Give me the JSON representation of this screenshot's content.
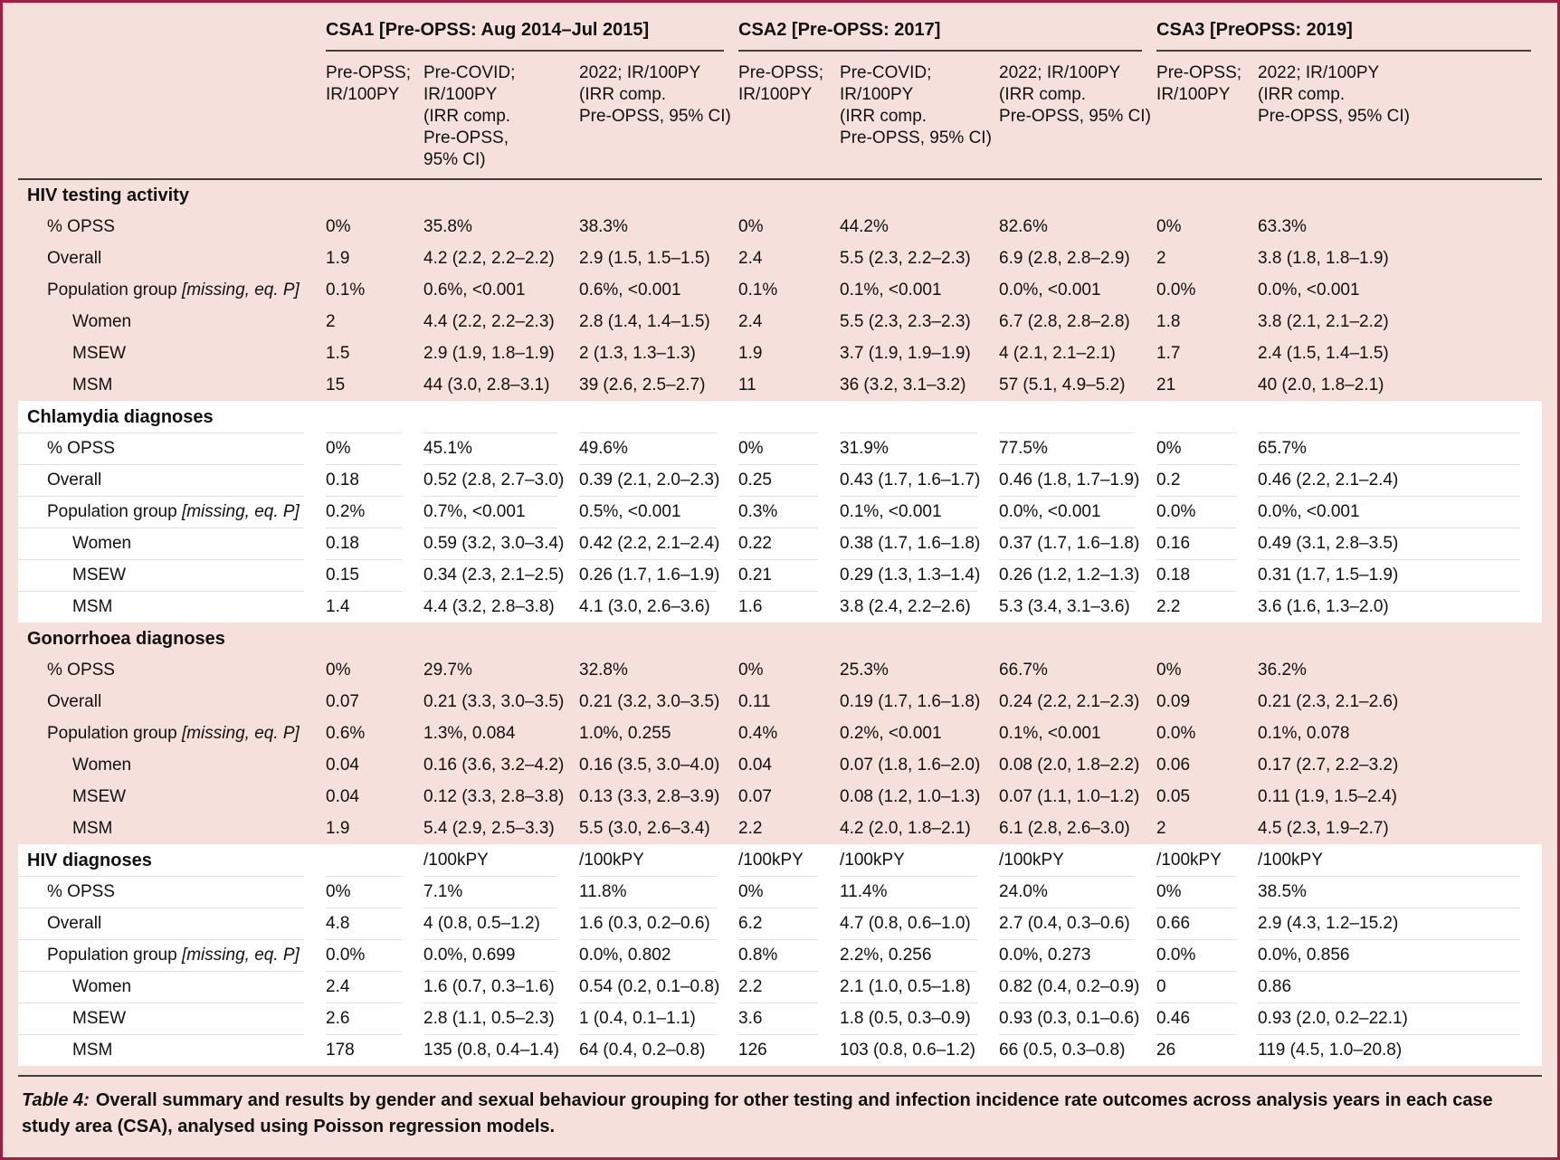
{
  "page": {
    "background_color": "#f6e0dc",
    "border_color": "#9c2044",
    "white_band_color": "#ffffff",
    "rule_color": "#3f3f3f"
  },
  "table": {
    "groups": [
      {
        "label": "CSA1 [Pre-OPSS: Aug 2014–Jul 2015]",
        "span": 3
      },
      {
        "label": "CSA2 [Pre-OPSS: 2017]",
        "span": 3
      },
      {
        "label": "CSA3 [PreOPSS: 2019]",
        "span": 2
      }
    ],
    "columns": [
      [
        "Pre-OPSS;",
        "IR/100PY"
      ],
      [
        "Pre-COVID;",
        "IR/100PY",
        "(IRR comp.",
        "Pre-OPSS,",
        "95% CI)"
      ],
      [
        "2022; IR/100PY",
        "(IRR comp.",
        "Pre-OPSS, 95% CI)"
      ],
      [
        "Pre-OPSS;",
        "IR/100PY"
      ],
      [
        "Pre-COVID;",
        "IR/100PY",
        "(IRR comp.",
        "Pre-OPSS, 95% CI)"
      ],
      [
        "2022; IR/100PY",
        "(IRR comp.",
        "Pre-OPSS, 95% CI)"
      ],
      [
        "Pre-OPSS;",
        "IR/100PY"
      ],
      [
        "2022; IR/100PY",
        "(IRR comp.",
        "Pre-OPSS, 95% CI)"
      ]
    ],
    "sections": [
      {
        "title": "HIV testing activity",
        "background": "pink",
        "unit_cells": [
          "",
          "",
          "",
          "",
          "",
          "",
          "",
          ""
        ],
        "rows": [
          {
            "label": "% OPSS",
            "indent": 1,
            "cells": [
              "0%",
              "35.8%",
              "38.3%",
              "0%",
              "44.2%",
              "82.6%",
              "0%",
              "63.3%"
            ]
          },
          {
            "label": "Overall",
            "indent": 1,
            "cells": [
              "1.9",
              "4.2 (2.2, 2.2–2.2)",
              "2.9 (1.5, 1.5–1.5)",
              "2.4",
              "5.5 (2.3, 2.2–2.3)",
              "6.9 (2.8, 2.8–2.9)",
              "2",
              "3.8 (1.8, 1.8–1.9)"
            ]
          },
          {
            "label": "Population group",
            "label_italic": "[missing, eq. P]",
            "indent": 1,
            "cells": [
              "0.1%",
              "0.6%, <0.001",
              "0.6%, <0.001",
              "0.1%",
              "0.1%, <0.001",
              "0.0%, <0.001",
              "0.0%",
              "0.0%, <0.001"
            ]
          },
          {
            "label": "Women",
            "indent": 2,
            "cells": [
              "2",
              "4.4 (2.2, 2.2–2.3)",
              "2.8 (1.4, 1.4–1.5)",
              "2.4",
              "5.5 (2.3, 2.3–2.3)",
              "6.7 (2.8, 2.8–2.8)",
              "1.8",
              "3.8 (2.1, 2.1–2.2)"
            ]
          },
          {
            "label": "MSEW",
            "indent": 2,
            "cells": [
              "1.5",
              "2.9 (1.9, 1.8–1.9)",
              "2 (1.3, 1.3–1.3)",
              "1.9",
              "3.7 (1.9, 1.9–1.9)",
              "4 (2.1, 2.1–2.1)",
              "1.7",
              "2.4 (1.5, 1.4–1.5)"
            ]
          },
          {
            "label": "MSM",
            "indent": 2,
            "cells": [
              "15",
              "44 (3.0, 2.8–3.1)",
              "39 (2.6, 2.5–2.7)",
              "11",
              "36 (3.2, 3.1–3.2)",
              "57 (5.1, 4.9–5.2)",
              "21",
              "40 (2.0, 1.8–2.1)"
            ]
          }
        ]
      },
      {
        "title": "Chlamydia diagnoses",
        "background": "white",
        "unit_cells": [
          "",
          "",
          "",
          "",
          "",
          "",
          "",
          ""
        ],
        "rows": [
          {
            "label": "% OPSS",
            "indent": 1,
            "cells": [
              "0%",
              "45.1%",
              "49.6%",
              "0%",
              "31.9%",
              "77.5%",
              "0%",
              "65.7%"
            ]
          },
          {
            "label": "Overall",
            "indent": 1,
            "cells": [
              "0.18",
              "0.52 (2.8, 2.7–3.0)",
              "0.39 (2.1, 2.0–2.3)",
              "0.25",
              "0.43 (1.7, 1.6–1.7)",
              "0.46 (1.8, 1.7–1.9)",
              "0.2",
              "0.46 (2.2, 2.1–2.4)"
            ]
          },
          {
            "label": "Population group",
            "label_italic": "[missing, eq. P]",
            "indent": 1,
            "cells": [
              "0.2%",
              "0.7%, <0.001",
              "0.5%, <0.001",
              "0.3%",
              "0.1%, <0.001",
              "0.0%, <0.001",
              "0.0%",
              "0.0%, <0.001"
            ]
          },
          {
            "label": "Women",
            "indent": 2,
            "cells": [
              "0.18",
              "0.59 (3.2, 3.0–3.4)",
              "0.42 (2.2, 2.1–2.4)",
              "0.22",
              "0.38 (1.7, 1.6–1.8)",
              "0.37 (1.7, 1.6–1.8)",
              "0.16",
              "0.49 (3.1, 2.8–3.5)"
            ]
          },
          {
            "label": "MSEW",
            "indent": 2,
            "cells": [
              "0.15",
              "0.34 (2.3, 2.1–2.5)",
              "0.26 (1.7, 1.6–1.9)",
              "0.21",
              "0.29 (1.3, 1.3–1.4)",
              "0.26 (1.2, 1.2–1.3)",
              "0.18",
              "0.31 (1.7, 1.5–1.9)"
            ]
          },
          {
            "label": "MSM",
            "indent": 2,
            "cells": [
              "1.4",
              "4.4 (3.2, 2.8–3.8)",
              "4.1 (3.0, 2.6–3.6)",
              "1.6",
              "3.8 (2.4, 2.2–2.6)",
              "5.3 (3.4, 3.1–3.6)",
              "2.2",
              "3.6 (1.6, 1.3–2.0)"
            ]
          }
        ]
      },
      {
        "title": "Gonorrhoea diagnoses",
        "background": "pink",
        "unit_cells": [
          "",
          "",
          "",
          "",
          "",
          "",
          "",
          ""
        ],
        "rows": [
          {
            "label": "% OPSS",
            "indent": 1,
            "cells": [
              "0%",
              "29.7%",
              "32.8%",
              "0%",
              "25.3%",
              "66.7%",
              "0%",
              "36.2%"
            ]
          },
          {
            "label": "Overall",
            "indent": 1,
            "cells": [
              "0.07",
              "0.21 (3.3, 3.0–3.5)",
              "0.21 (3.2, 3.0–3.5)",
              "0.11",
              "0.19 (1.7, 1.6–1.8)",
              "0.24 (2.2, 2.1–2.3)",
              "0.09",
              "0.21 (2.3, 2.1–2.6)"
            ]
          },
          {
            "label": "Population group",
            "label_italic": "[missing, eq. P]",
            "indent": 1,
            "cells": [
              "0.6%",
              "1.3%, 0.084",
              "1.0%, 0.255",
              "0.4%",
              "0.2%, <0.001",
              "0.1%, <0.001",
              "0.0%",
              "0.1%, 0.078"
            ]
          },
          {
            "label": "Women",
            "indent": 2,
            "cells": [
              "0.04",
              "0.16 (3.6, 3.2–4.2)",
              "0.16 (3.5, 3.0–4.0)",
              "0.04",
              "0.07 (1.8, 1.6–2.0)",
              "0.08 (2.0, 1.8–2.2)",
              "0.06",
              "0.17 (2.7, 2.2–3.2)"
            ]
          },
          {
            "label": "MSEW",
            "indent": 2,
            "cells": [
              "0.04",
              "0.12 (3.3, 2.8–3.8)",
              "0.13 (3.3, 2.8–3.9)",
              "0.07",
              "0.08 (1.2, 1.0–1.3)",
              "0.07 (1.1, 1.0–1.2)",
              "0.05",
              "0.11 (1.9, 1.5–2.4)"
            ]
          },
          {
            "label": "MSM",
            "indent": 2,
            "cells": [
              "1.9",
              "5.4 (2.9, 2.5–3.3)",
              "5.5 (3.0, 2.6–3.4)",
              "2.2",
              "4.2 (2.0, 1.8–2.1)",
              "6.1 (2.8, 2.6–3.0)",
              "2",
              "4.5 (2.3, 1.9–2.7)"
            ]
          }
        ]
      },
      {
        "title": "HIV diagnoses",
        "background": "white",
        "unit_cells": [
          "",
          "/100kPY",
          "/100kPY",
          "/100kPY",
          "/100kPY",
          "/100kPY",
          "/100kPY",
          "/100kPY"
        ],
        "rows": [
          {
            "label": "% OPSS",
            "indent": 1,
            "cells": [
              "0%",
              "7.1%",
              "11.8%",
              "0%",
              "11.4%",
              "24.0%",
              "0%",
              "38.5%"
            ]
          },
          {
            "label": "Overall",
            "indent": 1,
            "cells": [
              "4.8",
              "4 (0.8, 0.5–1.2)",
              "1.6 (0.3, 0.2–0.6)",
              "6.2",
              "4.7 (0.8, 0.6–1.0)",
              "2.7 (0.4, 0.3–0.6)",
              "0.66",
              "2.9 (4.3, 1.2–15.2)"
            ]
          },
          {
            "label": "Population group",
            "label_italic": "[missing, eq. P]",
            "indent": 1,
            "cells": [
              "0.0%",
              "0.0%, 0.699",
              "0.0%, 0.802",
              "0.8%",
              "2.2%, 0.256",
              "0.0%, 0.273",
              "0.0%",
              "0.0%, 0.856"
            ]
          },
          {
            "label": "Women",
            "indent": 2,
            "cells": [
              "2.4",
              "1.6 (0.7, 0.3–1.6)",
              "0.54 (0.2, 0.1–0.8)",
              "2.2",
              "2.1 (1.0, 0.5–1.8)",
              "0.82 (0.4, 0.2–0.9)",
              "0",
              "0.86"
            ]
          },
          {
            "label": "MSEW",
            "indent": 2,
            "cells": [
              "2.6",
              "2.8 (1.1, 0.5–2.3)",
              "1 (0.4, 0.1–1.1)",
              "3.6",
              "1.8 (0.5, 0.3–0.9)",
              "0.93 (0.3, 0.1–0.6)",
              "0.46",
              "0.93 (2.0, 0.2–22.1)"
            ]
          },
          {
            "label": "MSM",
            "indent": 2,
            "cells": [
              "178",
              "135 (0.8, 0.4–1.4)",
              "64 (0.4, 0.2–0.8)",
              "126",
              "103 (0.8, 0.6–1.2)",
              "66 (0.5, 0.3–0.8)",
              "26",
              "119 (4.5, 1.0–20.8)"
            ]
          }
        ]
      }
    ],
    "caption_prefix": "Table 4:",
    "caption_text": "Overall summary and results by gender and sexual behaviour grouping for other testing and infection incidence rate outcomes across analysis years in each case study area (CSA), analysed using Poisson regression models."
  }
}
